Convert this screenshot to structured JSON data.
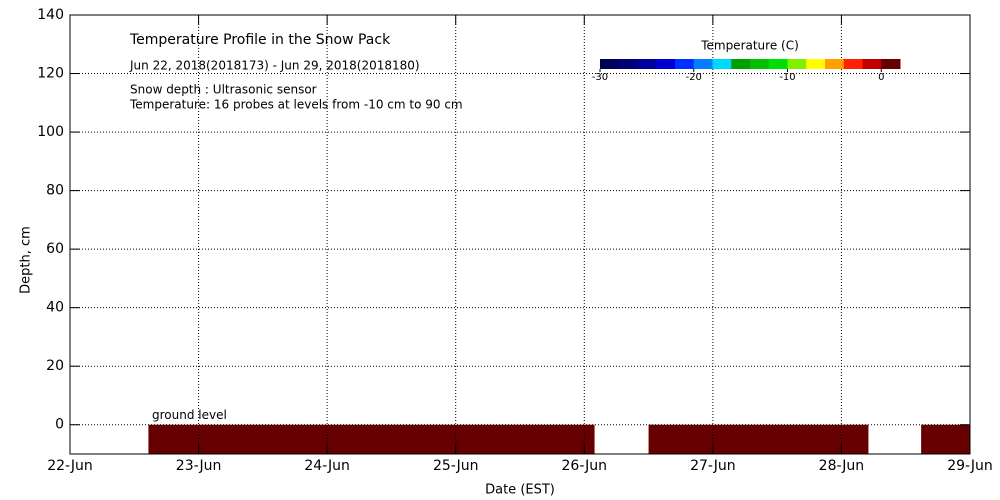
{
  "chart_data": {
    "type": "heatmap",
    "title": "Temperature Profile in the Snow Pack",
    "subtitle": "Jun 22, 2018(2018173) - Jun 29, 2018(2018180)",
    "notes": [
      "Snow depth : Ultrasonic sensor",
      "Temperature: 16 probes at levels from -10 cm to 90 cm"
    ],
    "annotation": "ground level",
    "xlabel": "Date (EST)",
    "ylabel": "Depth, cm",
    "xlim": [
      0,
      7
    ],
    "xticks": [
      {
        "value": 0,
        "label": "22-Jun"
      },
      {
        "value": 1,
        "label": "23-Jun"
      },
      {
        "value": 2,
        "label": "24-Jun"
      },
      {
        "value": 3,
        "label": "25-Jun"
      },
      {
        "value": 4,
        "label": "26-Jun"
      },
      {
        "value": 5,
        "label": "27-Jun"
      },
      {
        "value": 6,
        "label": "28-Jun"
      },
      {
        "value": 7,
        "label": "29-Jun"
      }
    ],
    "ylim": [
      -10,
      140
    ],
    "yticks": [
      0,
      20,
      40,
      60,
      80,
      100,
      120,
      140
    ],
    "grid": true,
    "cells": [
      {
        "x": [
          0.61,
          4.08
        ],
        "y": [
          -10,
          0
        ],
        "color": "#660000"
      },
      {
        "x": [
          4.5,
          6.21
        ],
        "y": [
          -10,
          0
        ],
        "color": "#660000"
      },
      {
        "x": [
          6.62,
          7
        ],
        "y": [
          -10,
          0
        ],
        "color": "#660000"
      }
    ],
    "colorbar": {
      "title": "Temperature (C)",
      "lim": [
        -30,
        2
      ],
      "ticks": [
        -30,
        -20,
        -10,
        0
      ],
      "colors": [
        "#00005a",
        "#000078",
        "#0000a0",
        "#0000d0",
        "#0030ff",
        "#0080ff",
        "#00d8ff",
        "#00a000",
        "#00c000",
        "#00e000",
        "#80f000",
        "#ffff00",
        "#ffa000",
        "#ff2000",
        "#c00000",
        "#660000"
      ]
    }
  }
}
